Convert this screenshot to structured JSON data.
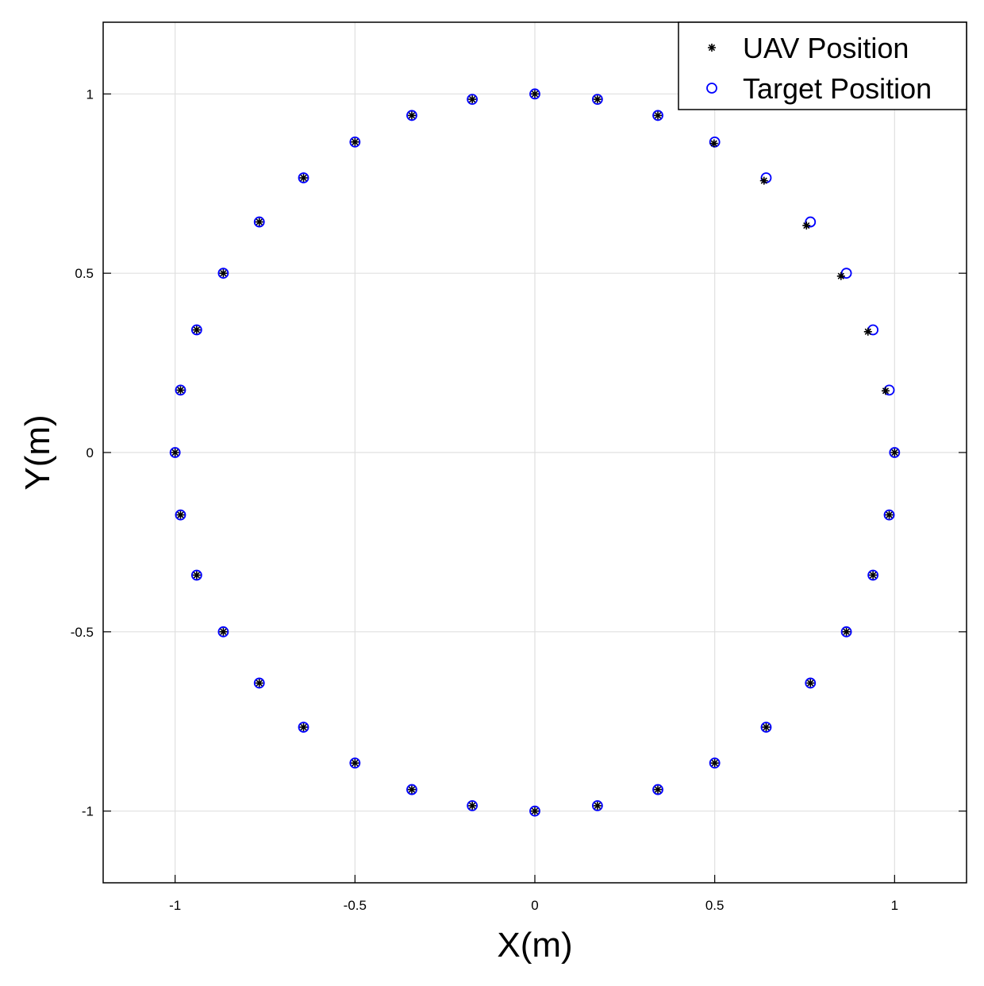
{
  "chart_data": {
    "type": "scatter",
    "x_label": "X(m)",
    "y_label": "Y(m)",
    "xlim": [
      -1.2,
      1.2
    ],
    "ylim": [
      -1.2,
      1.2
    ],
    "xticks": [
      -1,
      -0.5,
      0,
      0.5,
      1
    ],
    "yticks": [
      -1,
      -0.5,
      0,
      0.5,
      1
    ],
    "grid": true,
    "legend": "upper right",
    "series": [
      {
        "name": "UAV Position",
        "color": "#000000",
        "marker": "asterisk",
        "x": [
          1,
          0.975,
          0.926,
          0.851,
          0.755,
          0.637,
          0.498,
          0.342,
          0.174,
          0,
          -0.174,
          -0.342,
          -0.5,
          -0.643,
          -0.766,
          -0.866,
          -0.94,
          -0.985,
          -1,
          -0.985,
          -0.94,
          -0.866,
          -0.766,
          -0.643,
          -0.5,
          -0.342,
          -0.174,
          0,
          0.174,
          0.342,
          0.5,
          0.643,
          0.766,
          0.866,
          0.94,
          0.985
        ],
        "values": [
          0,
          0.172,
          0.337,
          0.492,
          0.633,
          0.758,
          0.862,
          0.94,
          0.985,
          1,
          0.985,
          0.94,
          0.866,
          0.766,
          0.643,
          0.5,
          0.342,
          0.174,
          0,
          -0.174,
          -0.342,
          -0.5,
          -0.643,
          -0.766,
          -0.866,
          -0.94,
          -0.985,
          -1,
          -0.985,
          -0.94,
          -0.866,
          -0.766,
          -0.643,
          -0.5,
          -0.342,
          -0.174
        ]
      },
      {
        "name": "Target Position",
        "color": "#0000ff",
        "marker": "circle",
        "x": [
          1,
          0.985,
          0.94,
          0.866,
          0.766,
          0.643,
          0.5,
          0.342,
          0.174,
          0,
          -0.174,
          -0.342,
          -0.5,
          -0.643,
          -0.766,
          -0.866,
          -0.94,
          -0.985,
          -1,
          -0.985,
          -0.94,
          -0.866,
          -0.766,
          -0.643,
          -0.5,
          -0.342,
          -0.174,
          0,
          0.174,
          0.342,
          0.5,
          0.643,
          0.766,
          0.866,
          0.94,
          0.985
        ],
        "values": [
          0,
          0.174,
          0.342,
          0.5,
          0.643,
          0.766,
          0.866,
          0.94,
          0.985,
          1,
          0.985,
          0.94,
          0.866,
          0.766,
          0.643,
          0.5,
          0.342,
          0.174,
          0,
          -0.174,
          -0.342,
          -0.5,
          -0.643,
          -0.766,
          -0.866,
          -0.94,
          -0.985,
          -1,
          -0.985,
          -0.94,
          -0.866,
          -0.766,
          -0.643,
          -0.5,
          -0.342,
          -0.174
        ]
      }
    ]
  }
}
